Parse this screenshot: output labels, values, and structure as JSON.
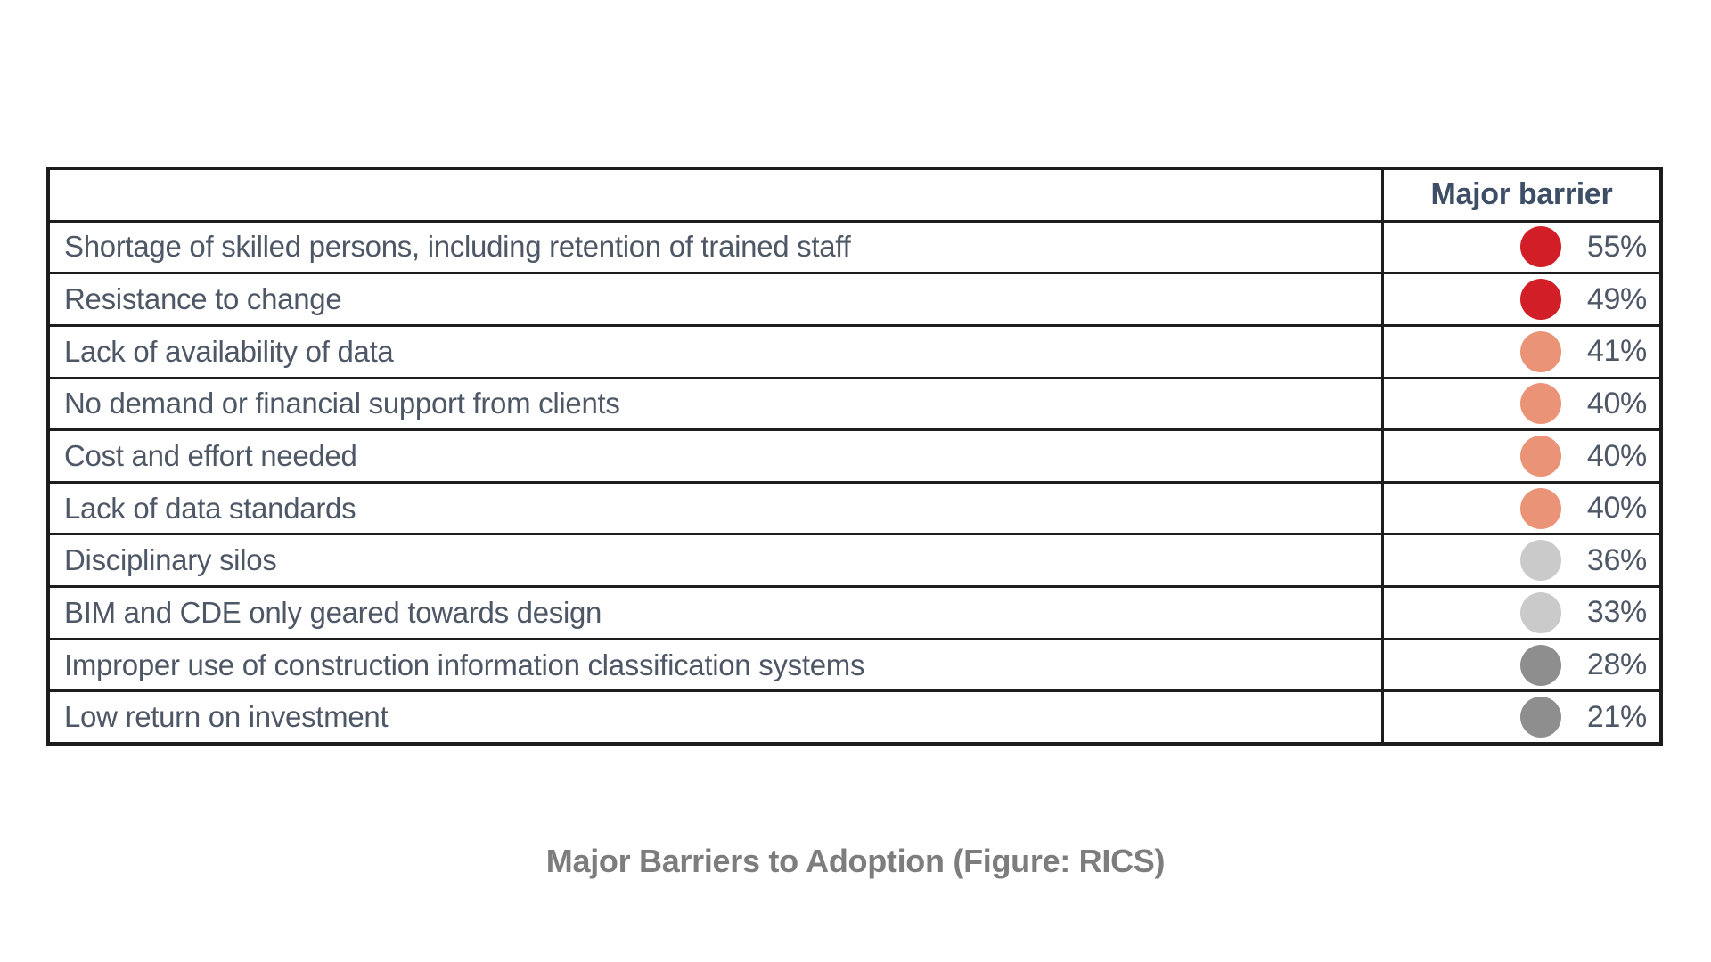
{
  "table": {
    "header": {
      "major_barrier": "Major barrier"
    },
    "rows": [
      {
        "label": "Shortage of skilled persons, including retention of trained staff",
        "value": "55%",
        "dot_color": "#d21e26"
      },
      {
        "label": "Resistance to change",
        "value": "49%",
        "dot_color": "#d21e26"
      },
      {
        "label": "Lack of availability of data",
        "value": "41%",
        "dot_color": "#eb9377"
      },
      {
        "label": "No demand or financial support from clients",
        "value": "40%",
        "dot_color": "#eb9377"
      },
      {
        "label": "Cost and effort needed",
        "value": "40%",
        "dot_color": "#eb9377"
      },
      {
        "label": "Lack of data standards",
        "value": "40%",
        "dot_color": "#eb9377"
      },
      {
        "label": "Disciplinary silos",
        "value": "36%",
        "dot_color": "#cacaca"
      },
      {
        "label": "BIM and CDE only geared towards design",
        "value": "33%",
        "dot_color": "#cacaca"
      },
      {
        "label": "Improper use of construction information classification systems",
        "value": "28%",
        "dot_color": "#8e8e8e"
      },
      {
        "label": "Low return on investment",
        "value": "21%",
        "dot_color": "#8e8e8e"
      }
    ]
  },
  "caption": "Major Barriers to Adoption (Figure: RICS)",
  "colors": {
    "border": "#1d1d1d",
    "row_text": "#4e5765",
    "header_text": "#3e4e66",
    "caption_text": "#7d7d7d",
    "dot_red": "#d21e26",
    "dot_salmon": "#eb9377",
    "dot_light_gray": "#cacaca",
    "dot_dark_gray": "#8e8e8e"
  },
  "chart_data": {
    "type": "table",
    "title": "Major Barriers to Adoption (Figure: RICS)",
    "columns": [
      "",
      "Major barrier"
    ],
    "categories": [
      "Shortage of skilled persons, including retention of trained staff",
      "Resistance to change",
      "Lack of availability of data",
      "No demand or financial support from clients",
      "Cost and effort needed",
      "Lack of data standards",
      "Disciplinary silos",
      "BIM and CDE only geared towards design",
      "Improper use of construction information classification systems",
      "Low return on investment"
    ],
    "values": [
      55,
      49,
      41,
      40,
      40,
      40,
      36,
      33,
      28,
      21
    ],
    "value_unit": "%",
    "dot_colors": [
      "#d21e26",
      "#d21e26",
      "#eb9377",
      "#eb9377",
      "#eb9377",
      "#eb9377",
      "#cacaca",
      "#cacaca",
      "#8e8e8e",
      "#8e8e8e"
    ],
    "legend_position": "none",
    "grid": "table-borders"
  }
}
